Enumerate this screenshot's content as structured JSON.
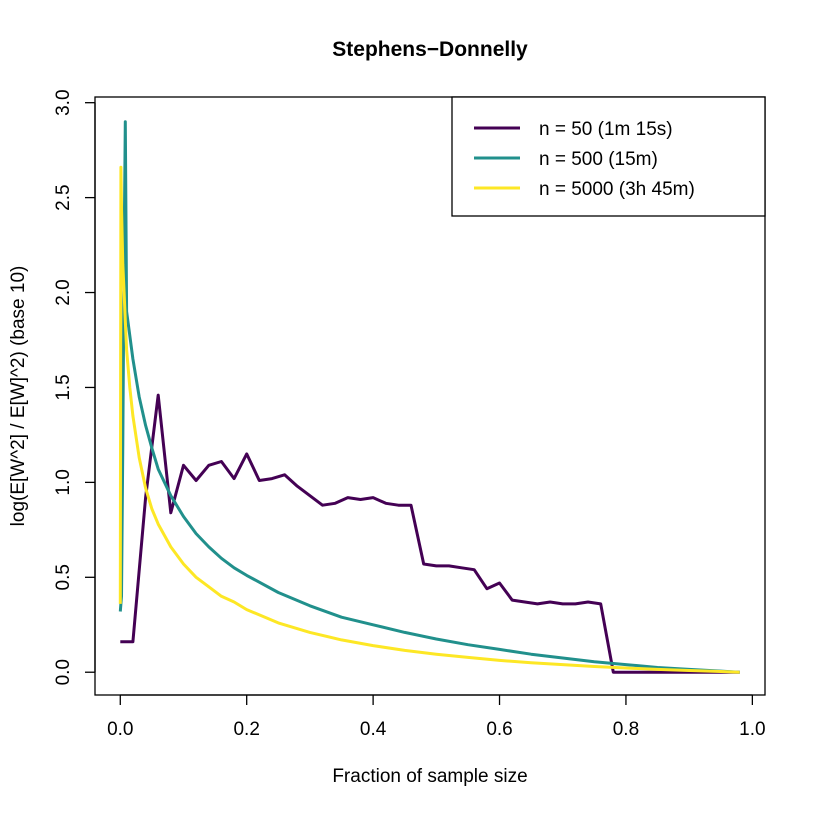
{
  "chart_data": {
    "type": "line",
    "title": "Stephens−Donnelly",
    "xlabel": "Fraction of sample size",
    "ylabel": "log(E[W^2] / E[W]^2) (base 10)",
    "xlim": [
      -0.04,
      1.02
    ],
    "ylim": [
      -0.12,
      3.03
    ],
    "xticks": [
      0.0,
      0.2,
      0.4,
      0.6,
      0.8,
      1.0
    ],
    "xtick_labels": [
      "0.0",
      "0.2",
      "0.4",
      "0.6",
      "0.8",
      "1.0"
    ],
    "yticks": [
      0.0,
      0.5,
      1.0,
      1.5,
      2.0,
      2.5,
      3.0
    ],
    "ytick_labels": [
      "0.0",
      "0.5",
      "1.0",
      "1.5",
      "2.0",
      "2.5",
      "3.0"
    ],
    "grid": false,
    "legend": {
      "position": "top-right"
    },
    "series": [
      {
        "name": "n = 50 (1m 15s)",
        "color": "#440154",
        "x": [
          0.0,
          0.02,
          0.04,
          0.06,
          0.08,
          0.1,
          0.12,
          0.14,
          0.16,
          0.18,
          0.2,
          0.22,
          0.24,
          0.26,
          0.28,
          0.3,
          0.32,
          0.34,
          0.36,
          0.38,
          0.4,
          0.42,
          0.44,
          0.46,
          0.48,
          0.5,
          0.52,
          0.54,
          0.56,
          0.58,
          0.6,
          0.62,
          0.64,
          0.66,
          0.68,
          0.7,
          0.72,
          0.74,
          0.76,
          0.78,
          0.8,
          0.82,
          0.84,
          0.86,
          0.88,
          0.9,
          0.92,
          0.94,
          0.96,
          0.98
        ],
        "y": [
          0.16,
          0.16,
          0.92,
          1.46,
          0.84,
          1.09,
          1.01,
          1.09,
          1.11,
          1.02,
          1.15,
          1.01,
          1.02,
          1.04,
          0.98,
          0.93,
          0.88,
          0.89,
          0.92,
          0.91,
          0.92,
          0.89,
          0.88,
          0.88,
          0.57,
          0.56,
          0.56,
          0.55,
          0.54,
          0.44,
          0.47,
          0.38,
          0.37,
          0.36,
          0.37,
          0.36,
          0.36,
          0.37,
          0.36,
          0.0,
          0.0,
          0.0,
          0.0,
          0.0,
          0.0,
          0.0,
          0.0,
          0.0,
          0.0,
          0.0
        ]
      },
      {
        "name": "n = 500 (15m)",
        "color": "#21908C",
        "x": [
          0.0,
          0.002,
          0.004,
          0.006,
          0.008,
          0.01,
          0.02,
          0.03,
          0.04,
          0.05,
          0.06,
          0.08,
          0.1,
          0.12,
          0.14,
          0.16,
          0.18,
          0.2,
          0.25,
          0.3,
          0.35,
          0.4,
          0.45,
          0.5,
          0.55,
          0.6,
          0.65,
          0.7,
          0.75,
          0.8,
          0.85,
          0.9,
          0.95,
          0.98
        ],
        "y": [
          0.32,
          0.4,
          1.2,
          2.2,
          2.9,
          1.9,
          1.65,
          1.45,
          1.3,
          1.18,
          1.07,
          0.93,
          0.82,
          0.73,
          0.66,
          0.6,
          0.55,
          0.51,
          0.42,
          0.35,
          0.29,
          0.25,
          0.21,
          0.175,
          0.145,
          0.12,
          0.095,
          0.075,
          0.055,
          0.04,
          0.025,
          0.015,
          0.006,
          0.0
        ]
      },
      {
        "name": "n = 5000 (3h 45m)",
        "color": "#FDE725",
        "x": [
          0.0,
          0.001,
          0.002,
          0.004,
          0.006,
          0.008,
          0.01,
          0.015,
          0.02,
          0.03,
          0.04,
          0.05,
          0.06,
          0.08,
          0.1,
          0.12,
          0.14,
          0.16,
          0.18,
          0.2,
          0.25,
          0.3,
          0.35,
          0.4,
          0.45,
          0.5,
          0.55,
          0.6,
          0.65,
          0.7,
          0.75,
          0.8,
          0.85,
          0.9,
          0.95,
          0.98
        ],
        "y": [
          0.36,
          2.66,
          2.45,
          2.15,
          2.0,
          1.85,
          1.7,
          1.5,
          1.35,
          1.13,
          0.97,
          0.86,
          0.78,
          0.66,
          0.57,
          0.5,
          0.45,
          0.4,
          0.37,
          0.33,
          0.26,
          0.21,
          0.17,
          0.14,
          0.115,
          0.095,
          0.078,
          0.062,
          0.05,
          0.04,
          0.03,
          0.022,
          0.015,
          0.009,
          0.004,
          0.0
        ]
      }
    ]
  }
}
